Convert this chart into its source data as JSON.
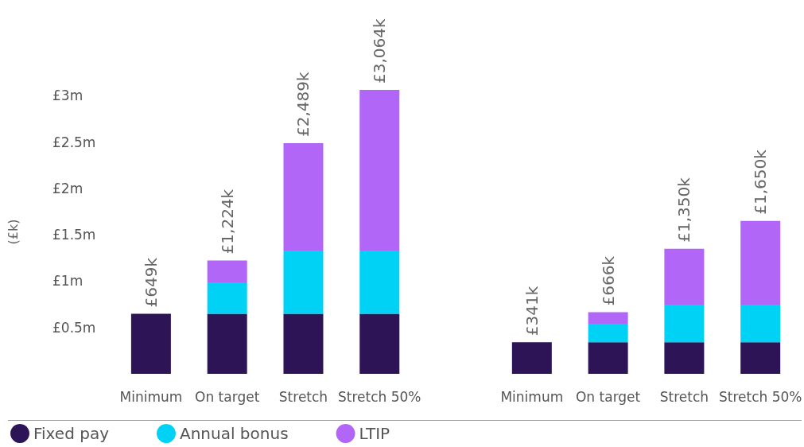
{
  "chart_data": {
    "type": "bar",
    "stacked": true,
    "ylabel": "(£k)",
    "categories": [
      "Minimum",
      "On target",
      "Stretch",
      "Stretch 50%",
      null,
      "Minimum",
      "On target",
      "Stretch",
      "Stretch 50%"
    ],
    "series": [
      {
        "name": "Fixed pay",
        "color": "#2d1457",
        "values": [
          0.649,
          0.649,
          0.649,
          0.649,
          null,
          0.341,
          0.341,
          0.341,
          0.341
        ]
      },
      {
        "name": "Annual bonus",
        "color": "#00d2f5",
        "values": [
          null,
          0.338,
          0.681,
          0.681,
          null,
          null,
          0.2,
          0.406,
          0.406
        ]
      },
      {
        "name": "LTIP",
        "color": "#b266f7",
        "values": [
          null,
          0.237,
          1.159,
          1.734,
          null,
          null,
          0.125,
          0.603,
          0.903
        ]
      }
    ],
    "totals": [
      "£649k",
      "£1,224k",
      "£2,489k",
      "£3,064k",
      null,
      "£341k",
      "£666k",
      "£1,350k",
      "£1,650k"
    ],
    "ylim": [
      0,
      3.064
    ],
    "yticks": [
      {
        "value": 0.5,
        "label": "£0.5m"
      },
      {
        "value": 1,
        "label": "£1m"
      },
      {
        "value": 1.5,
        "label": "£1.5m"
      },
      {
        "value": 2,
        "label": "£2m"
      },
      {
        "value": 2.5,
        "label": "£2.5m"
      },
      {
        "value": 3,
        "label": "£3m"
      }
    ],
    "grid": false,
    "legend": "bottom left"
  }
}
